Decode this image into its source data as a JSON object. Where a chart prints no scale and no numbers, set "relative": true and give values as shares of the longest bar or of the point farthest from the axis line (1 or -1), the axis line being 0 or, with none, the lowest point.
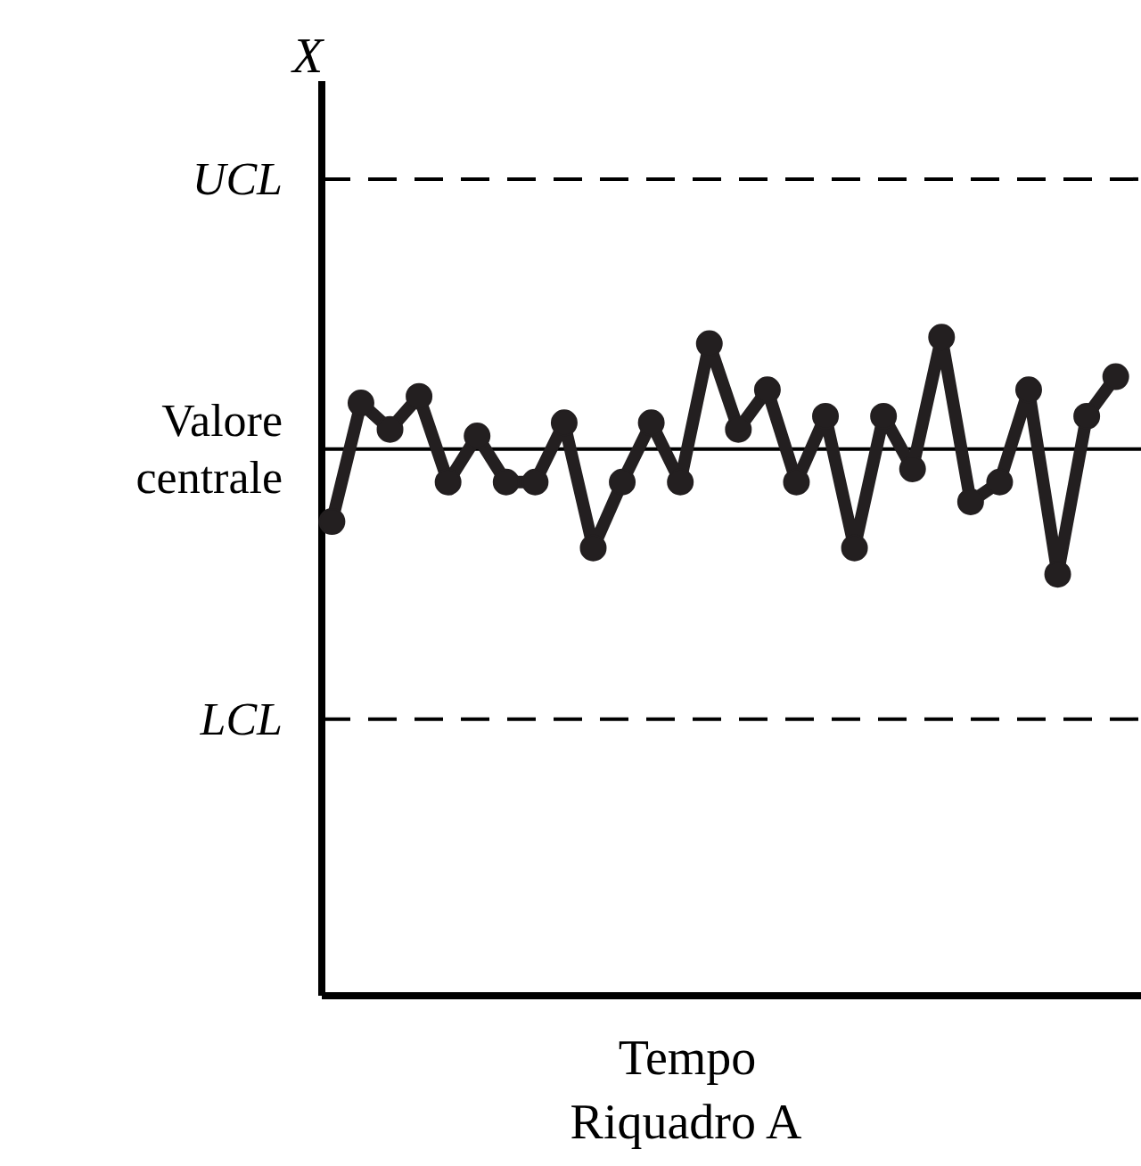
{
  "chart_data": {
    "type": "line",
    "relative": true,
    "marker": "circle",
    "line_style": "solid",
    "xlabel": "Tempo",
    "annotations": [
      "X",
      "Riquadro A"
    ],
    "categories": [
      null,
      null,
      null,
      null,
      null,
      null,
      null,
      null,
      null,
      null,
      null,
      null,
      null,
      null,
      null,
      null,
      null,
      null,
      null,
      null,
      null,
      null,
      null,
      null,
      null,
      null,
      null,
      null
    ],
    "series": [
      {
        "color": "#231f20",
        "values": [
          0.72,
          0.9,
          0.86,
          0.91,
          0.78,
          0.85,
          0.78,
          0.78,
          0.87,
          0.68,
          0.78,
          0.87,
          0.78,
          0.99,
          0.86,
          0.92,
          0.78,
          0.88,
          0.68,
          0.88,
          0.8,
          1.0,
          0.75,
          0.78,
          0.92,
          0.64,
          0.88,
          0.94
        ]
      }
    ],
    "ref_lines": [
      {
        "axis": "y",
        "value": 1.24,
        "label": "UCL",
        "line_style": "dashed",
        "color": "#000000"
      },
      {
        "axis": "y",
        "value": 0.83,
        "label": "Valore\ncentrale",
        "line_style": "solid",
        "color": "#000000"
      },
      {
        "axis": "y",
        "value": 0.42,
        "label": "LCL",
        "line_style": "dashed",
        "color": "#000000"
      }
    ]
  }
}
